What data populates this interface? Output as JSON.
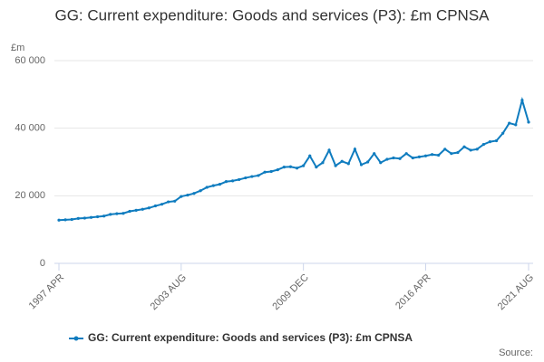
{
  "chart_data": {
    "type": "line",
    "title": "GG: Current expenditure: Goods and services (P3): £m CPNSA",
    "y_unit": "£m",
    "source": "Source:",
    "categories": [
      "1997 APR",
      null,
      null,
      null,
      null,
      null,
      null,
      null,
      null,
      null,
      null,
      null,
      null,
      null,
      null,
      null,
      null,
      null,
      null,
      "2003 AUG",
      null,
      null,
      null,
      null,
      null,
      null,
      null,
      null,
      null,
      null,
      null,
      null,
      null,
      null,
      null,
      null,
      null,
      null,
      "2009 DEC",
      null,
      null,
      null,
      null,
      null,
      null,
      null,
      null,
      null,
      null,
      null,
      null,
      null,
      null,
      null,
      null,
      null,
      null,
      "2016 APR",
      null,
      null,
      null,
      null,
      null,
      null,
      null,
      null,
      null,
      null,
      null,
      null,
      null,
      null,
      null,
      "2021 AUG"
    ],
    "series": [
      {
        "name": "GG: Current expenditure: Goods and services (P3): £m CPNSA",
        "color": "#0f7cbf",
        "values": [
          12800,
          12900,
          13000,
          13300,
          13400,
          13600,
          13800,
          14000,
          14500,
          14700,
          14800,
          15400,
          15700,
          16000,
          16400,
          17000,
          17500,
          18200,
          18400,
          19800,
          20200,
          20700,
          21500,
          22500,
          23000,
          23400,
          24200,
          24400,
          24800,
          25300,
          25700,
          26000,
          27000,
          27200,
          27700,
          28500,
          28600,
          28200,
          28900,
          31800,
          28500,
          29800,
          33500,
          28900,
          30200,
          29500,
          33800,
          29200,
          30000,
          32500,
          29800,
          30800,
          31200,
          31000,
          32500,
          31200,
          31500,
          31800,
          32200,
          32000,
          33800,
          32500,
          32800,
          34500,
          33500,
          33800,
          35200,
          36000,
          36300,
          38500,
          41500,
          41000,
          48300,
          41800
        ]
      }
    ],
    "ylim": [
      0,
      60000
    ],
    "yticks": [
      0,
      {
        "value": 20000,
        "label": "20 000"
      },
      {
        "value": 40000,
        "label": "40 000"
      },
      {
        "value": 60000,
        "label": "60 000"
      }
    ],
    "grid": true,
    "legend": "bottom"
  }
}
